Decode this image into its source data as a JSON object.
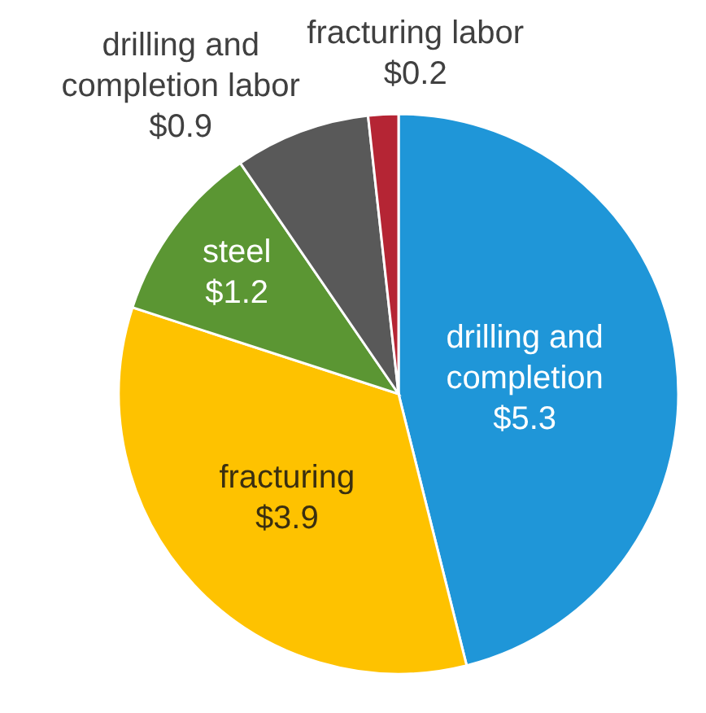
{
  "chart_data": {
    "type": "pie",
    "categories": [
      "drilling and completion",
      "fracturing",
      "steel",
      "drilling and completion labor",
      "fracturing labor"
    ],
    "values": [
      5.3,
      3.9,
      1.2,
      0.9,
      0.2
    ],
    "colors": [
      "#1f96d8",
      "#fec200",
      "#5b9633",
      "#595959",
      "#b52534"
    ],
    "value_labels": [
      "$5.3",
      "$3.9",
      "$1.2",
      "$0.9",
      "$0.2"
    ]
  }
}
